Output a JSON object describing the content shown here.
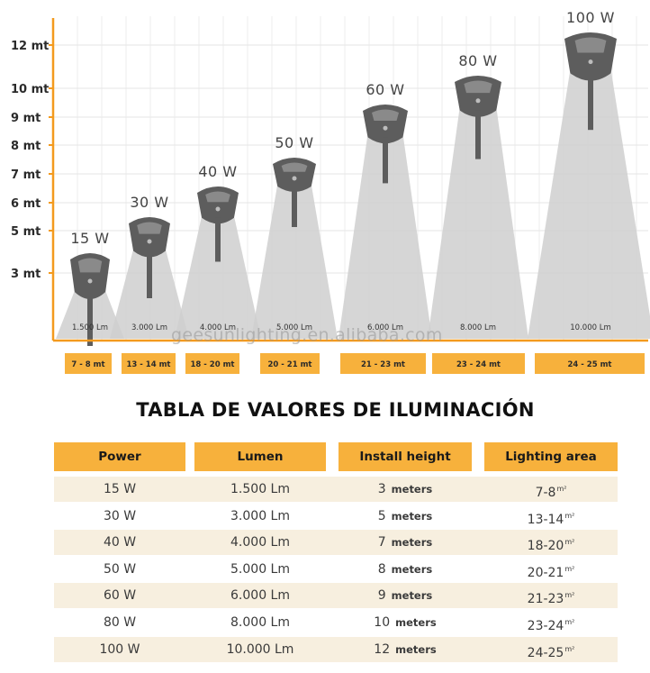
{
  "chart_data": {
    "type": "bar",
    "y_axis_ticks": [
      "12 mt",
      "10 mt",
      "9 mt",
      "8 mt",
      "7 mt",
      "6 mt",
      "5 mt",
      "3 mt"
    ],
    "lamps": [
      {
        "watt": "15 W",
        "lumen": "1.500 Lm",
        "area": "7 - 8 mt",
        "height_m": 3
      },
      {
        "watt": "30 W",
        "lumen": "3.000 Lm",
        "area": "13 - 14 mt",
        "height_m": 5
      },
      {
        "watt": "40 W",
        "lumen": "4.000 Lm",
        "area": "18 - 20 mt",
        "height_m": 7
      },
      {
        "watt": "50 W",
        "lumen": "5.000 Lm",
        "area": "20 - 21 mt",
        "height_m": 8
      },
      {
        "watt": "60 W",
        "lumen": "6.000 Lm",
        "area": "21 - 23 mt",
        "height_m": 9
      },
      {
        "watt": "80 W",
        "lumen": "8.000 Lm",
        "area": "23 - 24 mt",
        "height_m": 10
      },
      {
        "watt": "100 W",
        "lumen": "10.000 Lm",
        "area": "24 - 25 mt",
        "height_m": 12
      }
    ],
    "colors": {
      "axis": "#f39a1e",
      "area_box": "#f7b13c",
      "beam": "#cfcfcf",
      "fixture": "#5d5d5d"
    }
  },
  "watermark": "geesunlighting.en.alibaba.com",
  "table": {
    "title": "TABLA DE VALORES DE ILUMINACIÓN",
    "headers": {
      "power": "Power",
      "lumen": "Lumen",
      "height": "Install height",
      "area": "Lighting area"
    },
    "height_unit": "meters",
    "area_unit": "m²",
    "rows": [
      {
        "power": "15 W",
        "lumen": "1.500 Lm",
        "height": "3",
        "area": "7-8"
      },
      {
        "power": "30 W",
        "lumen": "3.000 Lm",
        "height": "5",
        "area": "13-14"
      },
      {
        "power": "40 W",
        "lumen": "4.000 Lm",
        "height": "7",
        "area": "18-20"
      },
      {
        "power": "50 W",
        "lumen": "5.000 Lm",
        "height": "8",
        "area": "20-21"
      },
      {
        "power": "60 W",
        "lumen": "6.000 Lm",
        "height": "9",
        "area": "21-23"
      },
      {
        "power": "80 W",
        "lumen": "8.000 Lm",
        "height": "10",
        "area": "23-24"
      },
      {
        "power": "100 W",
        "lumen": "10.000 Lm",
        "height": "12",
        "area": "24-25"
      }
    ]
  }
}
